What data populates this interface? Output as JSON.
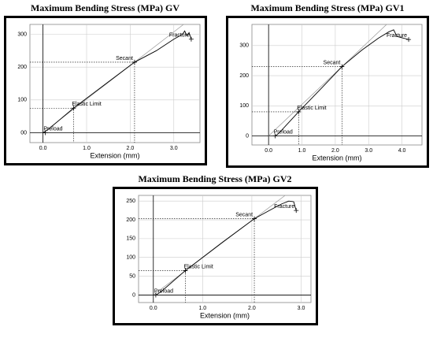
{
  "chart_data": [
    {
      "type": "line",
      "title": "Maximum Bending Stress (MPa) GV",
      "x_label": "Extension (mm)",
      "x": [
        0,
        0.1,
        0.7,
        1.5,
        2.1,
        2.6,
        3.0,
        3.2,
        3.25,
        3.3,
        3.35,
        3.4
      ],
      "values": [
        0,
        8,
        75,
        155,
        215,
        250,
        285,
        300,
        310,
        295,
        305,
        285
      ],
      "color": "#000000",
      "xlim": [
        -0.3,
        3.6
      ],
      "ylim": [
        -30,
        330
      ],
      "xticks": [
        {
          "value": 0,
          "label": "0.0"
        },
        {
          "value": 1,
          "label": "1.0"
        },
        {
          "value": 2,
          "label": "2.0"
        },
        {
          "value": 3,
          "label": "3.0"
        }
      ],
      "yticks": [
        {
          "value": 0,
          "label": "00"
        },
        100,
        200,
        300
      ],
      "grid": true,
      "annotations": [
        {
          "text": "Secant",
          "x": 2.1,
          "y": 215,
          "guides": true
        },
        {
          "text": "Elastic Limit",
          "x": 0.7,
          "y": 75,
          "guides": true
        },
        {
          "text": "Preload",
          "x": 0.05,
          "y": 0,
          "guides": false
        },
        {
          "text": "Fracture",
          "x": 3.4,
          "y": 285,
          "guides": false
        }
      ]
    },
    {
      "type": "line",
      "title": "Maximum Bending Stress (MPa) GV1",
      "x_label": "Extension (mm)",
      "x": [
        0.2,
        0.3,
        0.9,
        1.6,
        2.2,
        2.8,
        3.3,
        3.6,
        3.75,
        3.85,
        4.2
      ],
      "values": [
        0,
        8,
        80,
        160,
        230,
        285,
        325,
        345,
        352,
        330,
        320
      ],
      "color": "#000000",
      "xlim": [
        -0.5,
        4.6
      ],
      "ylim": [
        -30,
        370
      ],
      "xticks": [
        {
          "value": 0,
          "label": "0.0"
        },
        {
          "value": 1,
          "label": "1.0"
        },
        {
          "value": 2,
          "label": "2.0"
        },
        {
          "value": 3,
          "label": "3.0"
        },
        {
          "value": 4,
          "label": "4.0"
        }
      ],
      "yticks": [
        0,
        100,
        200,
        300
      ],
      "grid": true,
      "annotations": [
        {
          "text": "Secant",
          "x": 2.2,
          "y": 230,
          "guides": true
        },
        {
          "text": "Elastic Limit",
          "x": 0.9,
          "y": 80,
          "guides": true
        },
        {
          "text": "Preload",
          "x": 0.2,
          "y": 0,
          "guides": false
        },
        {
          "text": "Fracture",
          "x": 4.2,
          "y": 320,
          "guides": false
        }
      ]
    },
    {
      "type": "line",
      "title": "Maximum Bending Stress (MPa) GV2",
      "x_label": "Extension (mm)",
      "x": [
        0.05,
        0.15,
        0.65,
        1.4,
        2.05,
        2.4,
        2.6,
        2.75,
        2.85,
        2.9
      ],
      "values": [
        0,
        8,
        65,
        140,
        203,
        228,
        242,
        250,
        248,
        225
      ],
      "color": "#000000",
      "xlim": [
        -0.3,
        3.2
      ],
      "ylim": [
        -20,
        265
      ],
      "xticks": [
        {
          "value": 0,
          "label": "0.0"
        },
        {
          "value": 1,
          "label": "1.0"
        },
        {
          "value": 2,
          "label": "2.0"
        },
        {
          "value": 3,
          "label": "3.0"
        }
      ],
      "yticks": [
        0,
        50,
        100,
        150,
        200,
        250
      ],
      "grid": true,
      "annotations": [
        {
          "text": "Secant",
          "x": 2.05,
          "y": 203,
          "guides": true
        },
        {
          "text": "Elastic Limit",
          "x": 0.65,
          "y": 65,
          "guides": true
        },
        {
          "text": "Preload",
          "x": 0.05,
          "y": 0,
          "guides": false
        },
        {
          "text": "Fracture",
          "x": 2.9,
          "y": 225,
          "guides": false
        }
      ]
    }
  ]
}
